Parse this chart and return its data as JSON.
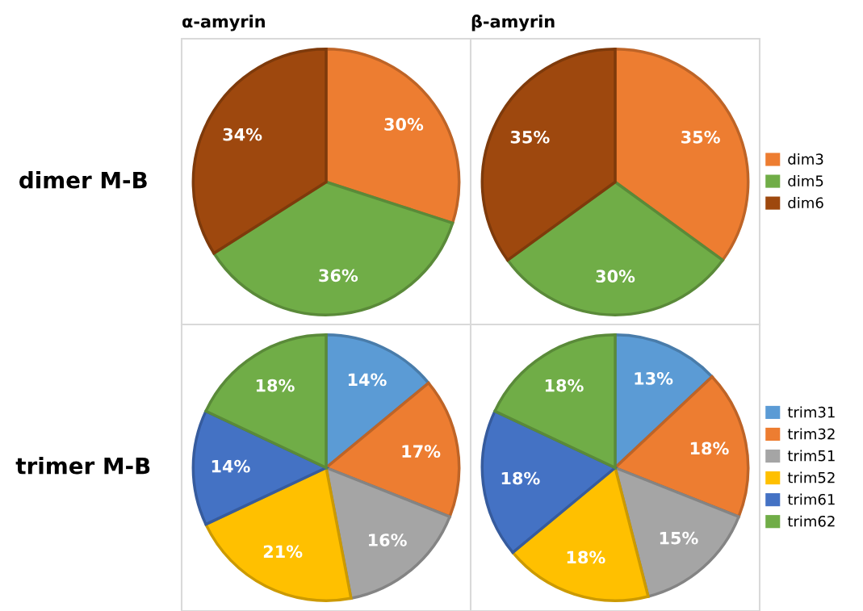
{
  "chart_data": [
    {
      "type": "pie",
      "title": "α-amyrin",
      "ylabel": "dimer M-B",
      "categories": [
        "dim3",
        "dim5",
        "dim6"
      ],
      "values": [
        30,
        36,
        34
      ],
      "colors": [
        "#ed7d31",
        "#70ad47",
        "#9e480e"
      ],
      "value_labels": [
        "30%",
        "36%",
        "34%"
      ],
      "legend": "right"
    },
    {
      "type": "pie",
      "title": "β-amyrin",
      "categories": [
        null,
        null,
        null
      ],
      "values": [
        35,
        30,
        35
      ],
      "colors": [
        "#ed7d31",
        "#70ad47",
        "#9e480e"
      ],
      "value_labels": [
        "35%",
        "30%",
        "35%"
      ],
      "legend": false
    },
    {
      "type": "pie",
      "ylabel": "trimer M-B",
      "categories": [
        "trim31",
        "trim32",
        "trim51",
        "trim52",
        "trim61",
        "trim62"
      ],
      "values": [
        14,
        17,
        16,
        21,
        14,
        18
      ],
      "colors": [
        "#5b9bd5",
        "#ed7d31",
        "#a5a5a5",
        "#ffc000",
        "#4472c4",
        "#70ad47"
      ],
      "value_labels": [
        "14%",
        "17%",
        "16%",
        "21%",
        "14%",
        "18%"
      ],
      "legend": "right"
    },
    {
      "type": "pie",
      "categories": [
        null,
        null,
        null,
        null,
        null,
        null
      ],
      "values": [
        13,
        18,
        15,
        18,
        18,
        18
      ],
      "colors": [
        "#5b9bd5",
        "#ed7d31",
        "#a5a5a5",
        "#ffc000",
        "#4472c4",
        "#70ad47"
      ],
      "value_labels": [
        "13%",
        "18%",
        "15%",
        "18%",
        "18%",
        "18%"
      ],
      "legend": false
    }
  ]
}
